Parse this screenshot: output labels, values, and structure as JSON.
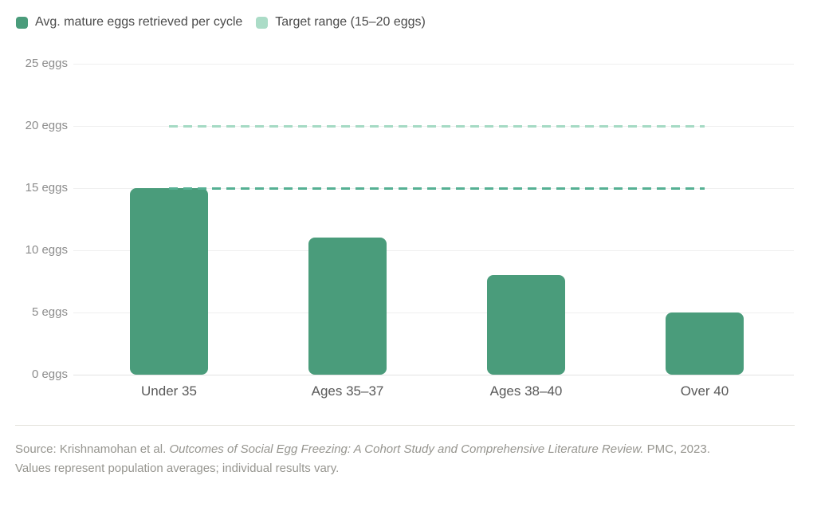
{
  "legend": [
    {
      "label": "Avg. mature eggs retrieved per cycle",
      "color": "#4A9C7B"
    },
    {
      "label": "Target range (15–20 eggs)",
      "color": "#ABDCC7"
    }
  ],
  "chart_data": {
    "type": "bar",
    "title": "",
    "categories": [
      "Under 35",
      "Ages 35–37",
      "Ages 38–40",
      "Over 40"
    ],
    "values": [
      15,
      11,
      8,
      5
    ],
    "series_name": "Avg. mature eggs retrieved per cycle",
    "xlabel": "",
    "ylabel": "",
    "ylim": [
      0,
      25
    ],
    "yticks": [
      0,
      5,
      10,
      15,
      20,
      25
    ],
    "ytick_suffix": " eggs",
    "grid": true,
    "legend_position": "top-left",
    "bar_color": "#4A9C7B",
    "target_range": {
      "label": "Target range (15–20 eggs)",
      "low": 15,
      "high": 20,
      "low_line_color": "#55B093",
      "high_line_color": "#A5DAC4"
    }
  },
  "footer": {
    "source_prefix": "Source: Krishnamohan et al. ",
    "source_italic": "Outcomes of Social Egg Freezing: A Cohort Study and Comprehensive Literature Review.",
    "source_suffix": " PMC, 2023.",
    "note": "Values represent population averages; individual results vary."
  }
}
